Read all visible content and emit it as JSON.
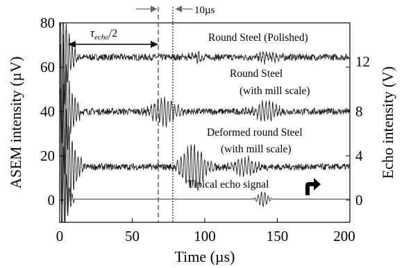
{
  "chart_data": {
    "type": "line",
    "xlabel": "Time (µs)",
    "ylabel_left": "ASEM intensity (µV)",
    "ylabel_right": "Echo intensity (V)",
    "xlim": [
      0,
      200
    ],
    "ylim_left": [
      -10,
      80
    ],
    "ylim_right": [
      -1.5,
      16.5
    ],
    "x_ticks": [
      "0",
      "50",
      "100",
      "150",
      "200"
    ],
    "y_ticks_left": [
      "0",
      "20",
      "40",
      "60",
      "80"
    ],
    "y_ticks_right": [
      "0",
      "4",
      "8",
      "12"
    ],
    "grid": false,
    "series": [
      {
        "name": "Round Steel (Polished)",
        "baseline_uV": 64.5,
        "noise_uV": 1.5,
        "initial_burst_end_us": 8,
        "bursts": [
          {
            "center_us": 95,
            "amp_uV": 1.5
          },
          {
            "center_us": 143,
            "amp_uV": 2.0
          }
        ]
      },
      {
        "name": "Round Steel (with mill scale)",
        "baseline_uV": 40,
        "noise_uV": 1.5,
        "initial_burst_end_us": 10,
        "bursts": [
          {
            "center_us": 72,
            "amp_uV": 6.5
          },
          {
            "center_us": 142,
            "amp_uV": 4.0
          }
        ]
      },
      {
        "name": "Deformed round Steel (with mill scale)",
        "baseline_uV": 15,
        "noise_uV": 1.5,
        "initial_burst_end_us": 12,
        "bursts": [
          {
            "center_us": 92,
            "amp_uV": 9.5
          },
          {
            "center_us": 128,
            "amp_uV": 4.0
          }
        ]
      },
      {
        "name": "Tipical echo signal",
        "baseline_uV": 0.5,
        "noise_uV": 0,
        "initial_burst_end_us": 6,
        "bursts": [
          {
            "center_us": 140,
            "amp_uV": 3.5
          }
        ]
      }
    ],
    "annotations": {
      "tau_label": "τ",
      "tau_sub": "echo",
      "tau_suffix": "/2",
      "tau_range_us": [
        6,
        68
      ],
      "dashed_line_us": 68,
      "dotted_line_us": 78,
      "gap_label": "10µs"
    }
  },
  "labels": {
    "series1": "Round Steel (Polished)",
    "series2a": "Round Steel",
    "series2b": "(with  mill scale)",
    "series3a": "Deformed round Steel",
    "series3b": "(with  mill scale)",
    "series4": "Tipical echo signal",
    "gap": "10µs",
    "tau": "τ",
    "tau_sub": "echo",
    "tau_suffix": "/2",
    "xlabel": "Time (µs)",
    "ylabel_left": "ASEM intensity (µV)",
    "ylabel_right": "Echo intensity (V)",
    "x0": "0",
    "x50": "50",
    "x100": "100",
    "x150": "150",
    "x200": "200",
    "yl0": "0",
    "yl20": "20",
    "yl40": "40",
    "yl60": "60",
    "yl80": "80",
    "yr0": "0",
    "yr4": "4",
    "yr8": "8",
    "yr12": "12"
  }
}
